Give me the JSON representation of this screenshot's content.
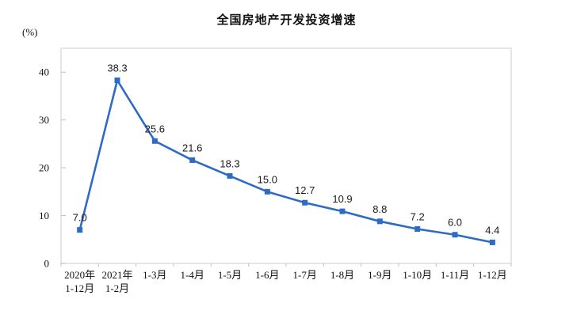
{
  "chart_data": {
    "type": "line",
    "title": "全国房地产开发投资增速",
    "unit_label": "(%)",
    "categories": [
      "2020年\n1-12月",
      "2021年\n1-2月",
      "1-3月",
      "1-4月",
      "1-5月",
      "1-6月",
      "1-7月",
      "1-8月",
      "1-9月",
      "1-10月",
      "1-11月",
      "1-12月"
    ],
    "values": [
      7.0,
      38.3,
      25.6,
      21.6,
      18.3,
      15.0,
      12.7,
      10.9,
      8.8,
      7.2,
      6.0,
      4.4
    ],
    "value_labels": [
      "7.0",
      "38.3",
      "25.6",
      "21.6",
      "18.3",
      "15.0",
      "12.7",
      "10.9",
      "8.8",
      "7.2",
      "6.0",
      "4.4"
    ],
    "yticks": [
      0,
      10,
      20,
      30,
      40
    ],
    "ylim": [
      0,
      45
    ],
    "grid": "off",
    "legend": "none",
    "line_color": "#2e6bc4",
    "marker_color": "#2e6bc4",
    "axis_color": "#d9d9d9",
    "tick_color": "#bfbfbf"
  }
}
